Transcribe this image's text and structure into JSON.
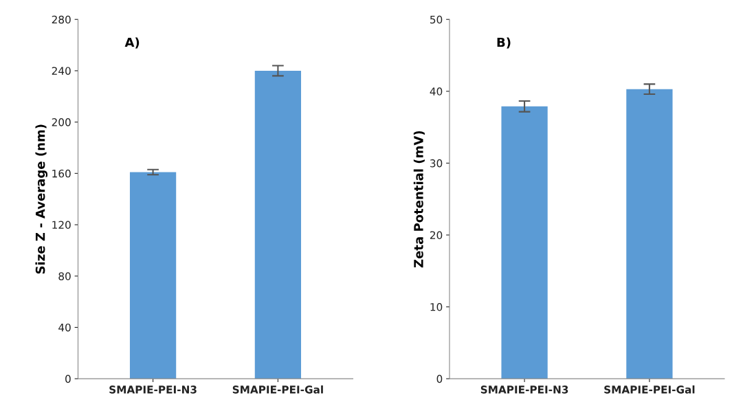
{
  "chart_data": [
    {
      "type": "bar",
      "title": "A)",
      "ylabel": "Size Z - Average (nm)",
      "categories": [
        "SMAPIE-PEI-N3",
        "SMAPIE-PEI-Gal"
      ],
      "values": [
        161,
        240
      ],
      "errors": [
        2,
        4
      ],
      "color": "#5b9bd5",
      "ylim": [
        0,
        280
      ],
      "yticks": [
        0,
        40,
        80,
        120,
        160,
        200,
        240,
        280
      ],
      "grid": false
    },
    {
      "type": "bar",
      "title": "B)",
      "ylabel": "Zeta Potential (mV)",
      "categories": [
        "SMAPIE-PEI-N3",
        "SMAPIE-PEI-Gal"
      ],
      "values": [
        37.9,
        40.3
      ],
      "errors": [
        0.75,
        0.7
      ],
      "color": "#5b9bd5",
      "ylim": [
        0,
        50
      ],
      "yticks": [
        0,
        10,
        20,
        30,
        40,
        50
      ],
      "grid": false
    }
  ]
}
